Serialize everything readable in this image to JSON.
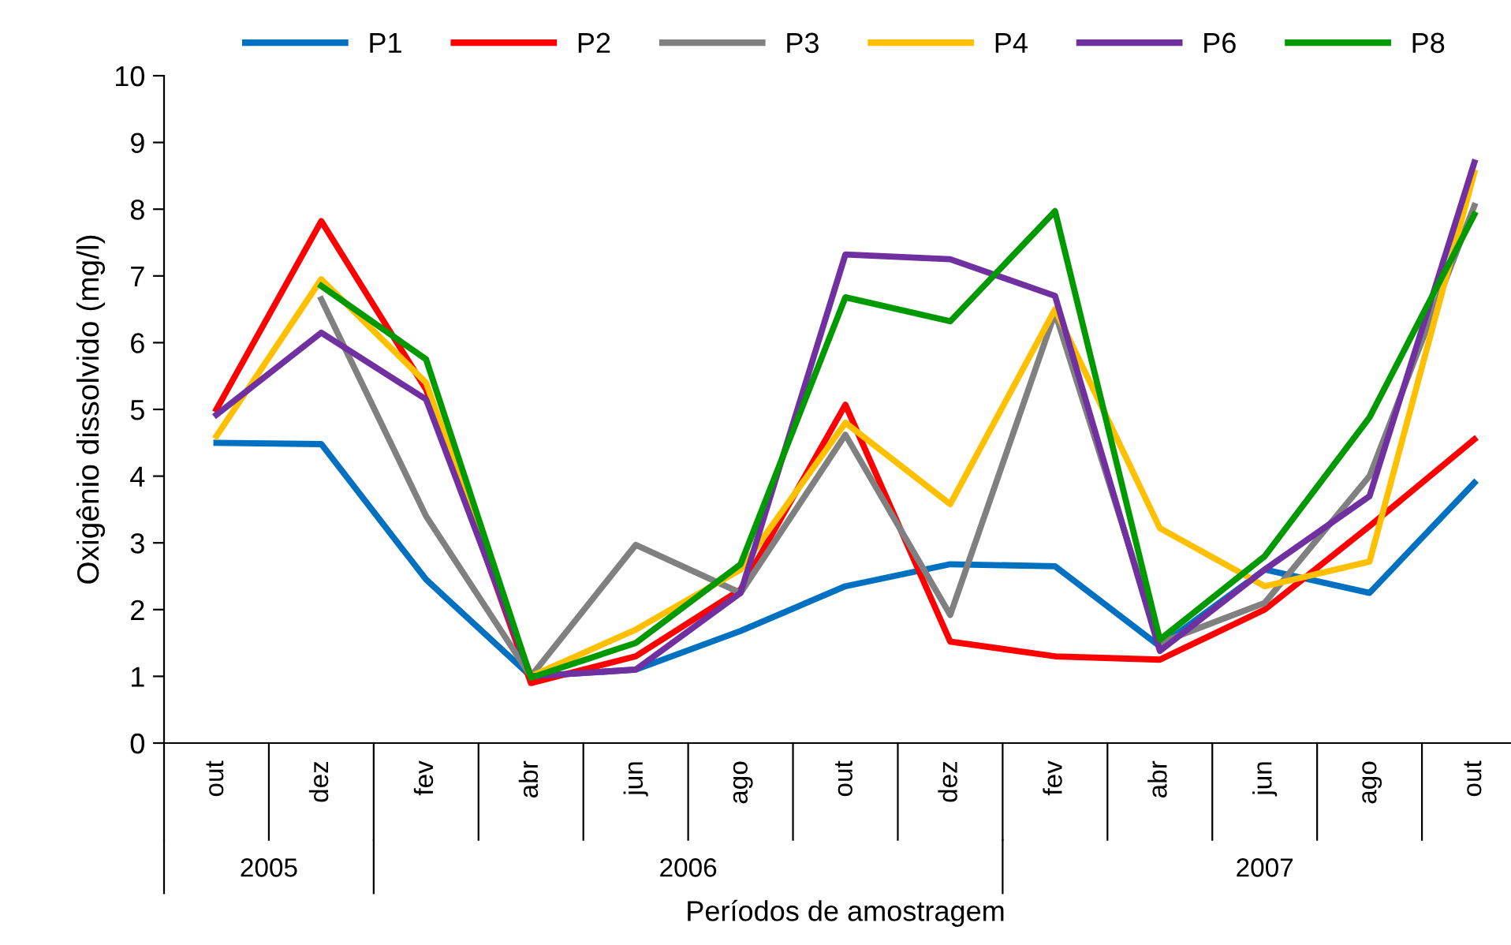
{
  "chart_data": {
    "type": "line",
    "xlabel": "Períodos de amostragem",
    "ylabel": "Oxigênio dissolvido (mg/l)",
    "categories": [
      "out",
      "dez",
      "fev",
      "abr",
      "jun",
      "ago",
      "out",
      "dez",
      "fev",
      "abr",
      "jun",
      "ago",
      "out"
    ],
    "series": [
      {
        "name": "P1",
        "color": "#0070c0",
        "values": [
          4.5,
          4.48,
          2.45,
          1.0,
          1.1,
          1.68,
          2.35,
          2.68,
          2.65,
          1.45,
          2.6,
          2.25,
          3.9
        ]
      },
      {
        "name": "P2",
        "color": "#ff0000",
        "values": [
          5.0,
          7.82,
          5.3,
          0.9,
          1.3,
          2.3,
          5.07,
          1.52,
          1.3,
          1.25,
          2.0,
          3.25,
          4.55
        ]
      },
      {
        "name": "P3",
        "color": "#808080",
        "values": [
          null,
          6.65,
          3.4,
          1.0,
          2.97,
          2.25,
          4.62,
          1.92,
          6.45,
          1.5,
          2.1,
          4.0,
          8.05
        ]
      },
      {
        "name": "P4",
        "color": "#ffc000",
        "values": [
          4.6,
          6.95,
          5.4,
          1.0,
          1.7,
          2.6,
          4.8,
          3.58,
          6.5,
          3.22,
          2.35,
          2.72,
          8.55
        ]
      },
      {
        "name": "P6",
        "color": "#7030a0",
        "values": [
          4.92,
          6.15,
          5.15,
          1.0,
          1.1,
          2.25,
          7.32,
          7.25,
          6.7,
          1.38,
          2.6,
          3.7,
          8.7
        ]
      },
      {
        "name": "P8",
        "color": "#009900",
        "values": [
          null,
          6.85,
          5.75,
          0.98,
          1.5,
          2.68,
          6.68,
          6.32,
          7.97,
          1.55,
          2.8,
          4.88,
          7.92
        ]
      }
    ],
    "annotations": [
      "2005",
      "2006",
      "2007"
    ],
    "ylim": [
      0,
      10
    ],
    "yticks": [
      0,
      1,
      2,
      3,
      4,
      5,
      6,
      7,
      8,
      9,
      10
    ],
    "grid": false,
    "legend": "top",
    "marker": "none",
    "line_style": "solid"
  }
}
